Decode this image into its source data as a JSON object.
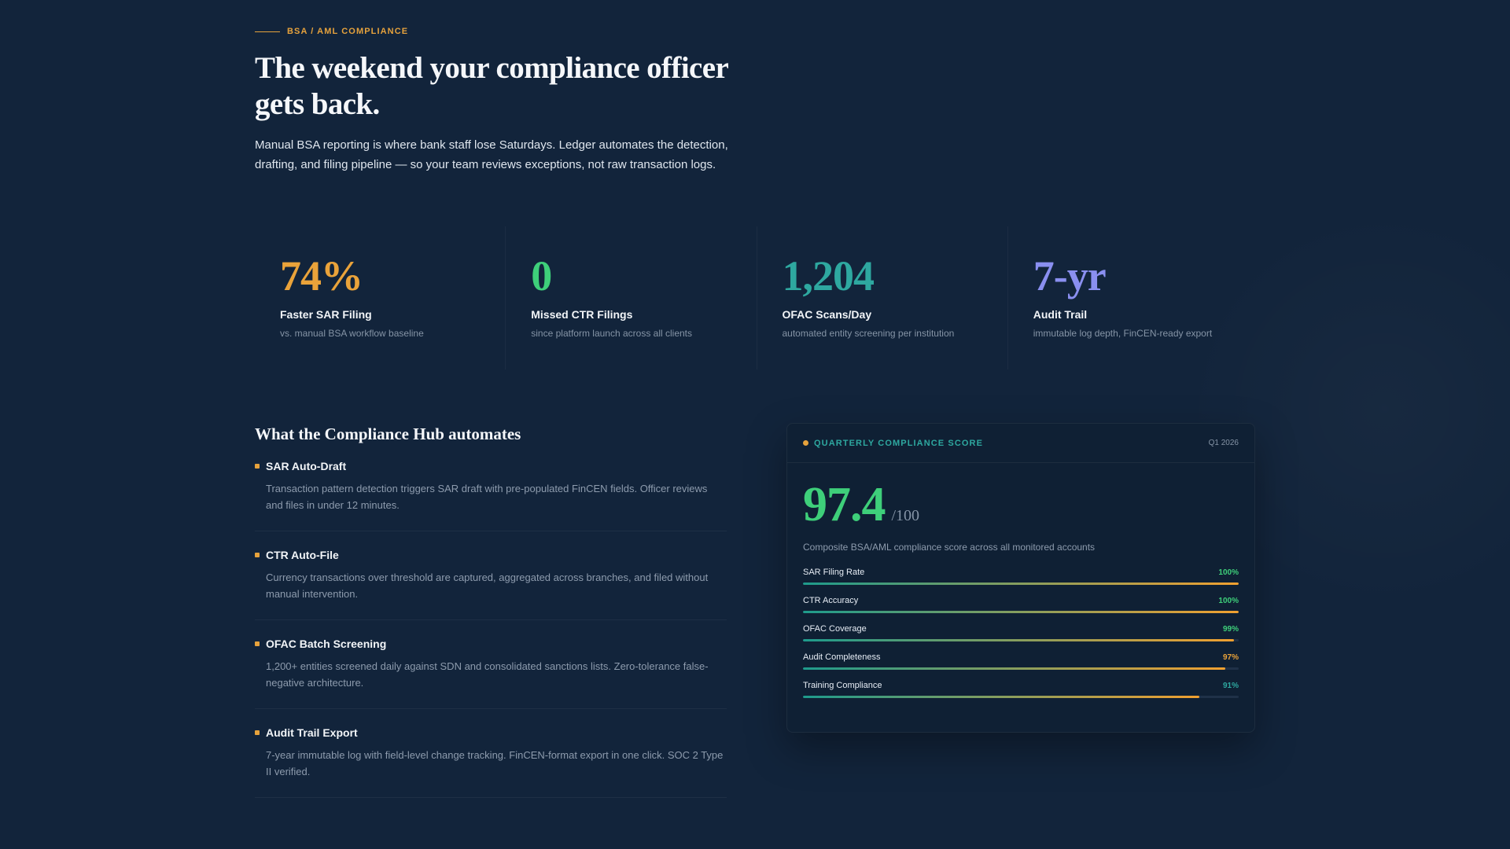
{
  "hero": {
    "eyebrow": "BSA / AML COMPLIANCE",
    "headline": "The weekend your compliance officer gets back.",
    "intro": "Manual BSA reporting is where bank staff lose Saturdays. Ledger automates the detection, drafting, and filing pipeline — so your team reviews exceptions, not raw transaction logs."
  },
  "stats": [
    {
      "value": "74%",
      "label": "Faster SAR Filing",
      "sub": "vs. manual BSA workflow baseline",
      "color": "#eaa33a"
    },
    {
      "value": "0",
      "label": "Missed CTR Filings",
      "sub": "since platform launch across all clients",
      "color": "#3ecf7a"
    },
    {
      "value": "1,204",
      "label": "OFAC Scans/Day",
      "sub": "automated entity screening per institution",
      "color": "#2ea8a0"
    },
    {
      "value": "7-yr",
      "label": "Audit Trail",
      "sub": "immutable log depth, FinCEN-ready export",
      "color": "#8a8ff0"
    }
  ],
  "features": {
    "title": "What the Compliance Hub automates",
    "items": [
      {
        "title": "SAR Auto-Draft",
        "desc": "Transaction pattern detection triggers SAR draft with pre-populated FinCEN fields. Officer reviews and files in under 12 minutes."
      },
      {
        "title": "CTR Auto-File",
        "desc": "Currency transactions over threshold are captured, aggregated across branches, and filed without manual intervention."
      },
      {
        "title": "OFAC Batch Screening",
        "desc": "1,200+ entities screened daily against SDN and consolidated sanctions lists. Zero-tolerance false-negative architecture."
      },
      {
        "title": "Audit Trail Export",
        "desc": "7-year immutable log with field-level change tracking. FinCEN-format export in one click. SOC 2 Type II verified."
      }
    ]
  },
  "score_card": {
    "title": "QUARTERLY COMPLIANCE SCORE",
    "period": "Q1 2026",
    "score": "97.4",
    "max": "/100",
    "desc": "Composite BSA/AML compliance score across all monitored accounts",
    "metrics": [
      {
        "name": "SAR Filing Rate",
        "value": "100%",
        "fill": 1.0,
        "color": "#3ecf7a"
      },
      {
        "name": "CTR Accuracy",
        "value": "100%",
        "fill": 1.0,
        "color": "#3ecf7a"
      },
      {
        "name": "OFAC Coverage",
        "value": "99%",
        "fill": 0.99,
        "color": "#3ecf7a"
      },
      {
        "name": "Audit Completeness",
        "value": "97%",
        "fill": 0.97,
        "color": "#eaa33a"
      },
      {
        "name": "Training Compliance",
        "value": "91%",
        "fill": 0.91,
        "color": "#2ea8a0"
      }
    ]
  }
}
